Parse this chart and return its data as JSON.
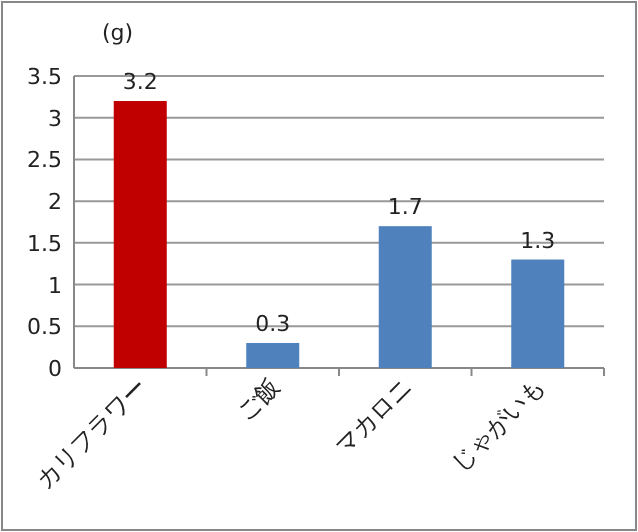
{
  "chart_data": {
    "type": "bar",
    "ylabel": "(g)",
    "categories": [
      "カリフラワー",
      "ご飯",
      "マカロニ",
      "じゃがいも"
    ],
    "values": [
      3.2,
      0.3,
      1.7,
      1.3
    ],
    "colors": [
      "#c00000",
      "#4f81bd",
      "#4f81bd",
      "#4f81bd"
    ],
    "ylim": [
      0,
      3.5
    ],
    "yticks": [
      0,
      0.5,
      1,
      1.5,
      2,
      2.5,
      3,
      3.5
    ],
    "grid": "y",
    "data_labels": true
  }
}
